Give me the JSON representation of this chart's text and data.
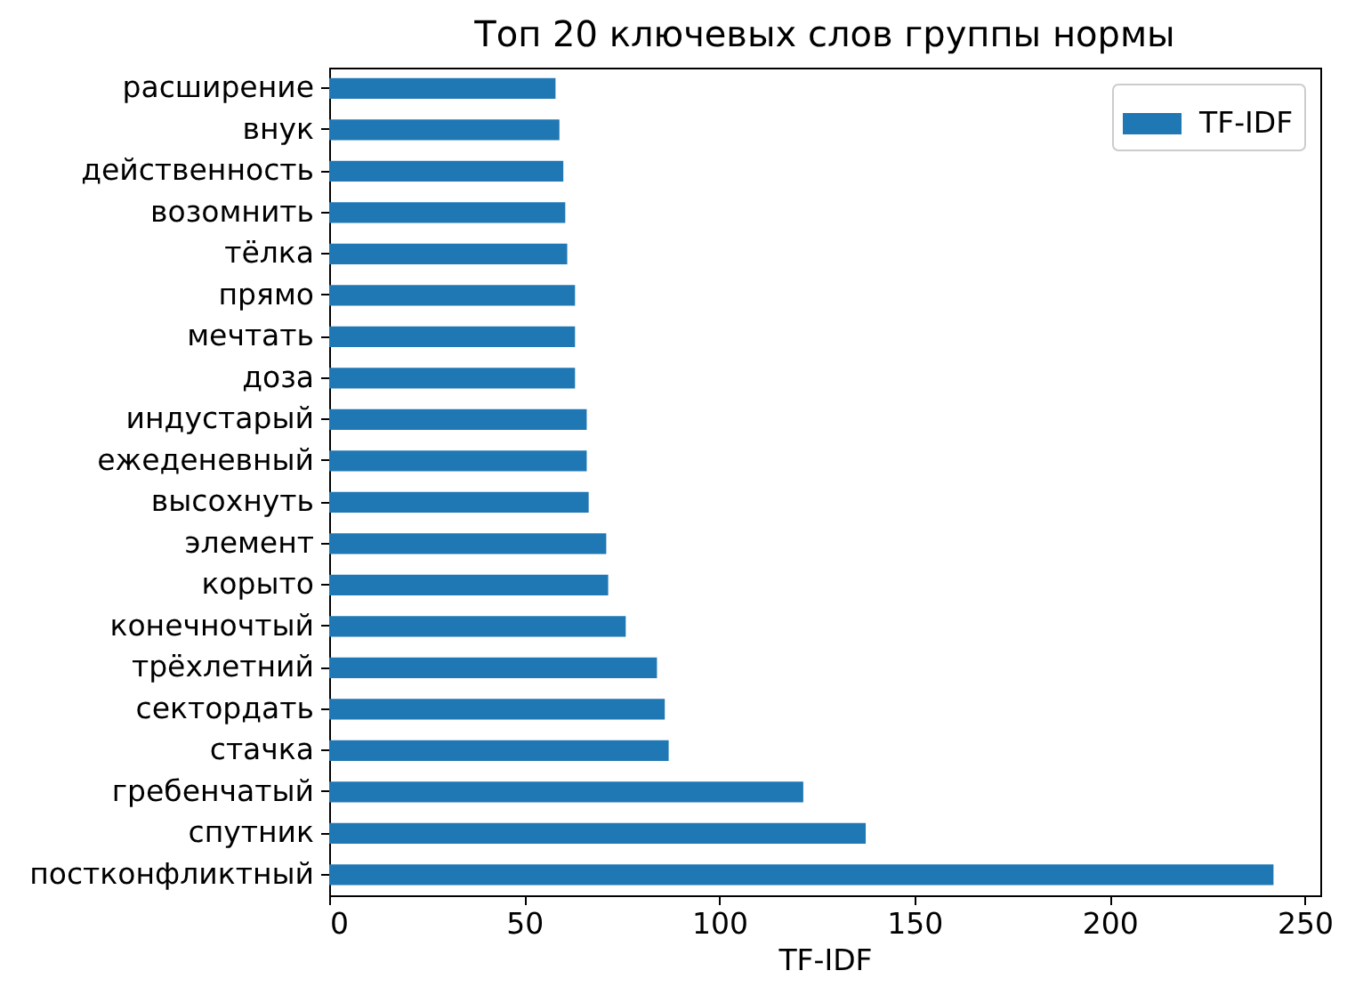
{
  "chart_data": {
    "type": "bar",
    "orientation": "horizontal",
    "title": "Топ 20 ключевых слов группы нормы",
    "xlabel": "TF-IDF",
    "categories": [
      "расширение",
      "внук",
      "действенность",
      "возомнить",
      "тёлка",
      "прямо",
      "мечтать",
      "доза",
      "индустарый",
      "ежеденевный",
      "высохнуть",
      "элемент",
      "корыто",
      "конечночтый",
      "трёхлетний",
      "сектордать",
      "стачка",
      "гребенчатый",
      "спутник",
      "постконфликтный"
    ],
    "series": [
      {
        "name": "TF-IDF",
        "color": "#1f77b4",
        "values": [
          58,
          59,
          60,
          60.5,
          61,
          63,
          63,
          63,
          66,
          66,
          66.5,
          71,
          71.5,
          76,
          84,
          86,
          87,
          121.5,
          137.5,
          242
        ]
      }
    ],
    "xlim": [
      0,
      254
    ],
    "xticks": [
      0,
      50,
      100,
      150,
      200,
      250
    ],
    "legend": "top right"
  }
}
